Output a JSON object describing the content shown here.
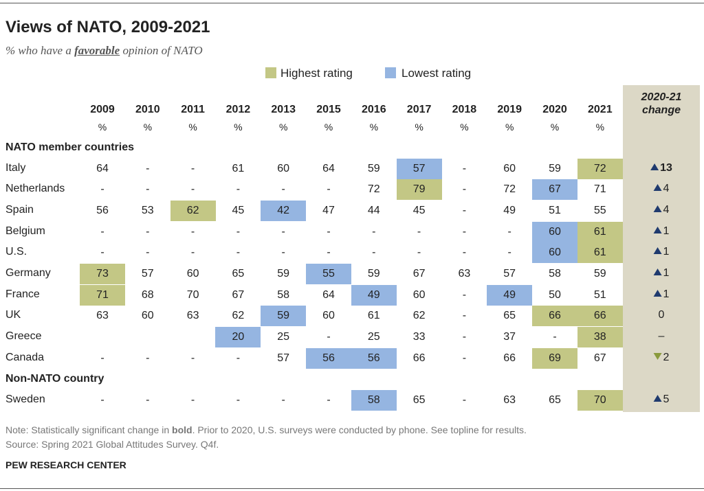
{
  "title": "Views of NATO, 2009-2021",
  "subtitle": {
    "before": "% who have a ",
    "emphasis": "favorable",
    "after": " opinion of NATO"
  },
  "legend": {
    "highest": {
      "label": "Highest rating",
      "color": "#c3c785"
    },
    "lowest": {
      "label": "Lowest rating",
      "color": "#95b5e1"
    }
  },
  "columns": {
    "years": [
      "2009",
      "2010",
      "2011",
      "2012",
      "2013",
      "2015",
      "2016",
      "2017",
      "2018",
      "2019",
      "2020",
      "2021"
    ],
    "units": [
      "%",
      "%",
      "%",
      "%",
      "%",
      "%",
      "%",
      "%",
      "%",
      "%",
      "%",
      "%"
    ],
    "change": "2020-21 change"
  },
  "sections": [
    {
      "name": "NATO member countries",
      "rows": [
        {
          "country": "Italy",
          "values": [
            64,
            "-",
            "-",
            61,
            60,
            64,
            59,
            57,
            "-",
            60,
            59,
            72
          ],
          "highest": [
            11
          ],
          "lowest": [
            7
          ],
          "change": {
            "text": "13",
            "direction": "up",
            "bold": true
          }
        },
        {
          "country": "Netherlands",
          "values": [
            "-",
            "-",
            "-",
            "-",
            "-",
            "-",
            72,
            79,
            "-",
            72,
            67,
            71
          ],
          "highest": [
            7
          ],
          "lowest": [
            10
          ],
          "change": {
            "text": "4",
            "direction": "up",
            "bold": false
          }
        },
        {
          "country": "Spain",
          "values": [
            56,
            53,
            62,
            45,
            42,
            47,
            44,
            45,
            "-",
            49,
            51,
            55
          ],
          "highest": [
            2
          ],
          "lowest": [
            4
          ],
          "change": {
            "text": "4",
            "direction": "up",
            "bold": false
          }
        },
        {
          "country": "Belgium",
          "values": [
            "-",
            "-",
            "-",
            "-",
            "-",
            "-",
            "-",
            "-",
            "-",
            "-",
            60,
            61
          ],
          "highest": [
            11
          ],
          "lowest": [
            10
          ],
          "change": {
            "text": "1",
            "direction": "up",
            "bold": false
          }
        },
        {
          "country": "U.S.",
          "values": [
            "-",
            "-",
            "-",
            "-",
            "-",
            "-",
            "-",
            "-",
            "-",
            "-",
            60,
            61
          ],
          "highest": [
            11
          ],
          "lowest": [
            10
          ],
          "change": {
            "text": "1",
            "direction": "up",
            "bold": false
          }
        },
        {
          "country": "Germany",
          "values": [
            73,
            57,
            60,
            65,
            59,
            55,
            59,
            67,
            63,
            57,
            58,
            59
          ],
          "highest": [
            0
          ],
          "lowest": [
            5
          ],
          "change": {
            "text": "1",
            "direction": "up",
            "bold": false
          }
        },
        {
          "country": "France",
          "values": [
            71,
            68,
            70,
            67,
            58,
            64,
            49,
            60,
            "-",
            49,
            50,
            51
          ],
          "highest": [
            0
          ],
          "lowest": [
            6,
            9
          ],
          "change": {
            "text": "1",
            "direction": "up",
            "bold": false
          }
        },
        {
          "country": "UK",
          "values": [
            63,
            60,
            63,
            62,
            59,
            60,
            61,
            62,
            "-",
            65,
            66,
            66
          ],
          "highest": [
            10,
            11
          ],
          "lowest": [
            4
          ],
          "change": {
            "text": "0",
            "direction": null,
            "bold": false
          }
        },
        {
          "country": "Greece",
          "values": [
            null,
            null,
            null,
            20,
            25,
            "-",
            25,
            33,
            "-",
            37,
            "-",
            38
          ],
          "highest": [
            11
          ],
          "lowest": [
            3
          ],
          "change": {
            "text": "–",
            "direction": null,
            "bold": false
          }
        },
        {
          "country": "Canada",
          "values": [
            "-",
            "-",
            "-",
            "-",
            57,
            56,
            56,
            66,
            "-",
            66,
            69,
            67
          ],
          "highest": [
            10
          ],
          "lowest": [
            5,
            6
          ],
          "change": {
            "text": "2",
            "direction": "down",
            "bold": false
          }
        }
      ]
    },
    {
      "name": "Non-NATO country",
      "rows": [
        {
          "country": "Sweden",
          "values": [
            "-",
            "-",
            "-",
            "-",
            "-",
            "-",
            58,
            65,
            "-",
            63,
            65,
            70
          ],
          "highest": [
            11
          ],
          "lowest": [
            6
          ],
          "change": {
            "text": "5",
            "direction": "up",
            "bold": false
          }
        }
      ]
    }
  ],
  "note": {
    "before": "Note: Statistically significant change in ",
    "bold": "bold",
    "after": ". Prior to 2020, U.S. surveys were conducted by phone. See topline for results."
  },
  "source": "Source: Spring 2021 Global Attitudes Survey. Q4f.",
  "footer": "PEW RESEARCH CENTER"
}
